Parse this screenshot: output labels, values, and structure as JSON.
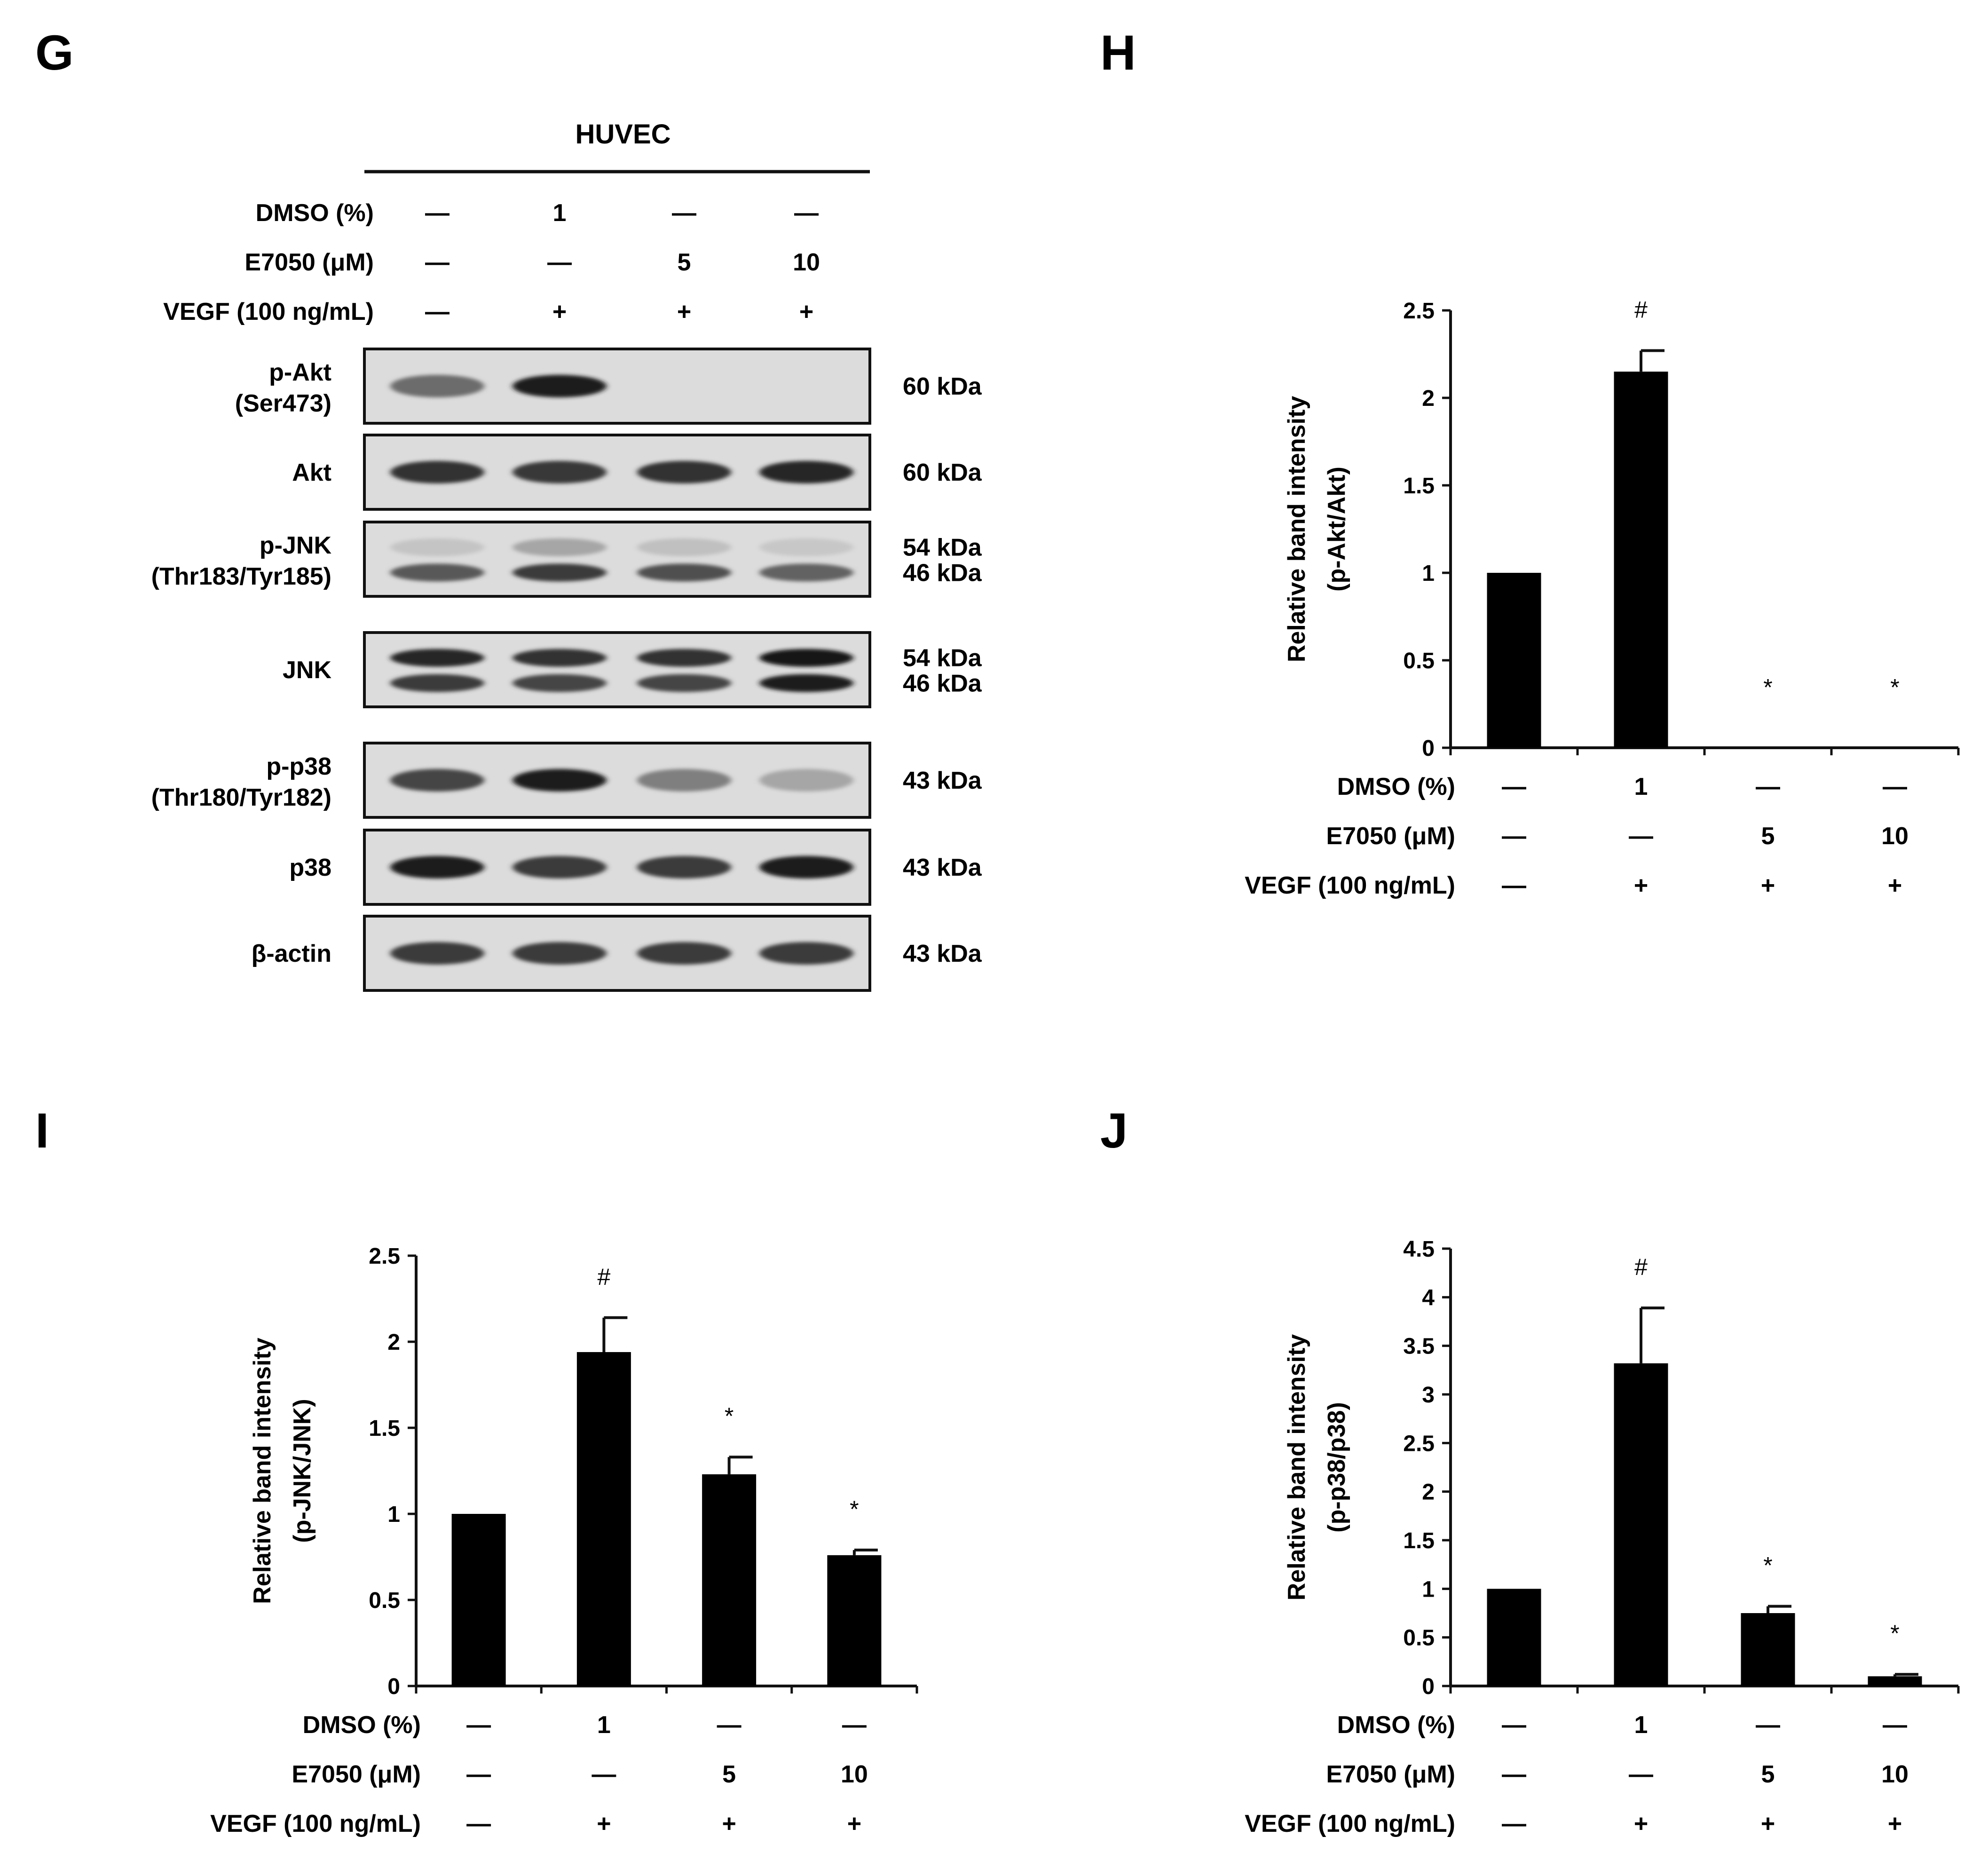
{
  "panel_labels": {
    "g": "G",
    "h": "H",
    "i": "I",
    "j": "J"
  },
  "treatments": {
    "labels": [
      "DMSO (%)",
      "E7050 (μM)",
      "VEGF (100 ng/mL)"
    ],
    "rows": [
      [
        "—",
        "1",
        "—",
        "—"
      ],
      [
        "—",
        "—",
        "5",
        "10"
      ],
      [
        "—",
        "+",
        "+",
        "+"
      ]
    ]
  },
  "western_blot": {
    "cell_line": "HUVEC",
    "blots": [
      {
        "label_lines": [
          "p-Akt",
          "(Ser473)"
        ],
        "sizes": [
          "60 kDa"
        ],
        "bands": [
          [
            0.55,
            0.95,
            0,
            0
          ]
        ]
      },
      {
        "label_lines": [
          "Akt"
        ],
        "sizes": [
          "60 kDa"
        ],
        "bands": [
          [
            0.85,
            0.82,
            0.85,
            0.9
          ]
        ]
      },
      {
        "label_lines": [
          "p-JNK",
          "(Thr183/Tyr185)"
        ],
        "sizes": [
          "54 kDa",
          "46 kDa"
        ],
        "bands": [
          [
            0.1,
            0.25,
            0.12,
            0.08
          ],
          [
            0.65,
            0.8,
            0.7,
            0.6
          ]
        ]
      },
      {
        "label_lines": [
          "JNK"
        ],
        "sizes": [
          "54 kDa",
          "46 kDa"
        ],
        "bands": [
          [
            0.9,
            0.85,
            0.85,
            1.0
          ],
          [
            0.8,
            0.75,
            0.75,
            0.95
          ]
        ]
      },
      {
        "label_lines": [
          "p-p38",
          "(Thr180/Tyr182)"
        ],
        "sizes": [
          "43 kDa"
        ],
        "bands": [
          [
            0.75,
            0.95,
            0.45,
            0.25
          ]
        ]
      },
      {
        "label_lines": [
          "p38"
        ],
        "sizes": [
          "43 kDa"
        ],
        "bands": [
          [
            0.95,
            0.8,
            0.8,
            0.95
          ]
        ]
      },
      {
        "label_lines": [
          "β-actin"
        ],
        "sizes": [
          "43 kDa"
        ],
        "bands": [
          [
            0.8,
            0.8,
            0.8,
            0.8
          ]
        ]
      }
    ]
  },
  "chart_data": [
    {
      "panel": "H",
      "type": "bar",
      "ylabel_lines": [
        "Relative band intensity",
        "(p-Akt/Akt)"
      ],
      "ylim": [
        0,
        2.5
      ],
      "ticks": [
        0,
        0.5,
        1,
        1.5,
        2,
        2.5
      ],
      "tick_labels": [
        "0",
        "0.5",
        "1",
        "1.5",
        "2",
        "2.5"
      ],
      "values": [
        1,
        2.15,
        0,
        0
      ],
      "errors": [
        0,
        0.12,
        0,
        0
      ],
      "marks": [
        "",
        "#",
        "*",
        "*"
      ],
      "bar_color": "#000000"
    },
    {
      "panel": "I",
      "type": "bar",
      "ylabel_lines": [
        "Relative band intensity",
        "(p-JNK/JNK)"
      ],
      "ylim": [
        0,
        2.5
      ],
      "ticks": [
        0,
        0.5,
        1,
        1.5,
        2,
        2.5
      ],
      "tick_labels": [
        "0",
        "0.5",
        "1",
        "1.5",
        "2",
        "2.5"
      ],
      "values": [
        1,
        1.94,
        1.23,
        0.76
      ],
      "errors": [
        0,
        0.2,
        0.1,
        0.03
      ],
      "marks": [
        "",
        "#",
        "*",
        "*"
      ],
      "bar_color": "#000000"
    },
    {
      "panel": "J",
      "type": "bar",
      "ylabel_lines": [
        "Relative band intensity",
        "(p-p38/p38)"
      ],
      "ylim": [
        0,
        4.5
      ],
      "ticks": [
        0,
        0.5,
        1,
        1.5,
        2,
        2.5,
        3,
        3.5,
        4,
        4.5
      ],
      "tick_labels": [
        "0",
        "0.5",
        "1",
        "1.5",
        "2",
        "2.5",
        "3",
        "3.5",
        "4",
        "4.5"
      ],
      "values": [
        1,
        3.32,
        0.75,
        0.1
      ],
      "errors": [
        0,
        0.57,
        0.07,
        0.02
      ],
      "marks": [
        "",
        "#",
        "*",
        "*"
      ],
      "bar_color": "#000000"
    }
  ]
}
